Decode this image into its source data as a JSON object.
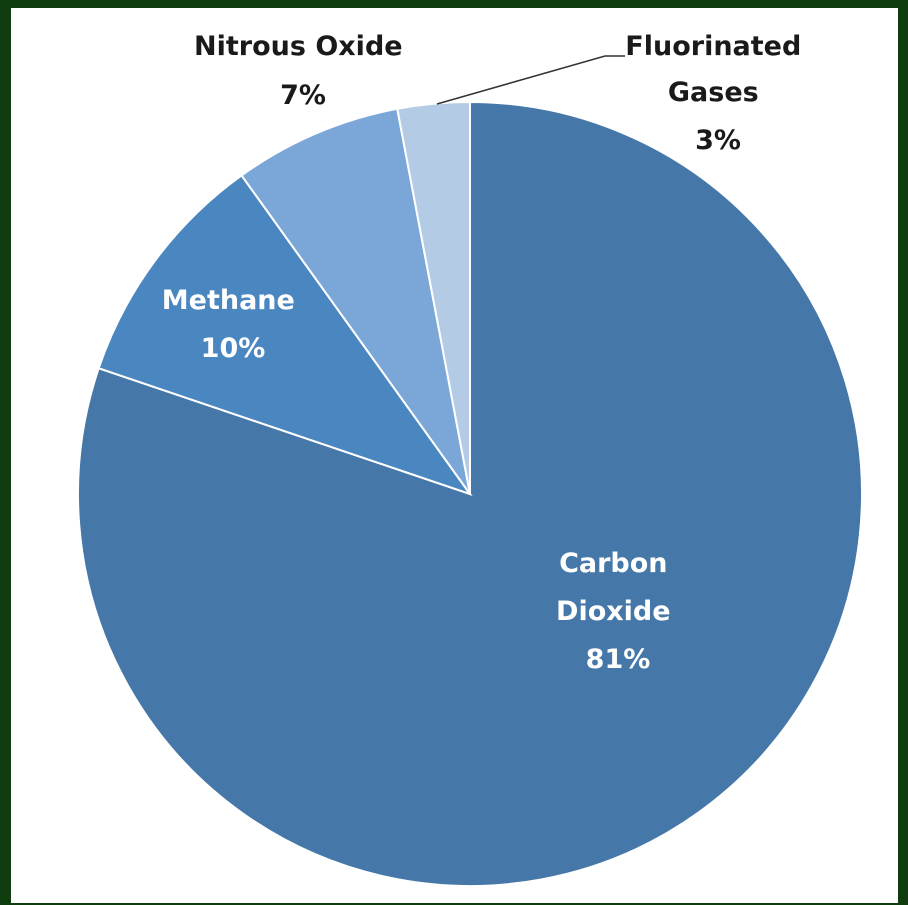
{
  "colors": {
    "frame": "#0f3d0f",
    "background": "#ffffff",
    "outside_label": "#1a1a1a",
    "inside_label": "#ffffff",
    "leader_line": "#333333"
  },
  "chart_data": {
    "type": "pie",
    "start_angle_deg": 0,
    "direction": "clockwise",
    "slices": [
      {
        "label_lines": [
          "Carbon",
          "Dioxide"
        ],
        "percent_label": "81%",
        "value": 81,
        "color": "#4577a8",
        "label_position": "inside"
      },
      {
        "label_lines": [
          "Methane"
        ],
        "percent_label": "10%",
        "value": 10,
        "color": "#4a86c0",
        "label_position": "inside"
      },
      {
        "label_lines": [
          "Nitrous Oxide"
        ],
        "percent_label": "7%",
        "value": 7,
        "color": "#7aa7d8",
        "label_position": "outside"
      },
      {
        "label_lines": [
          "Fluorinated",
          "Gases"
        ],
        "percent_label": "3%",
        "value": 3,
        "color": "#b4cbe6",
        "label_position": "outside-leader"
      }
    ]
  }
}
